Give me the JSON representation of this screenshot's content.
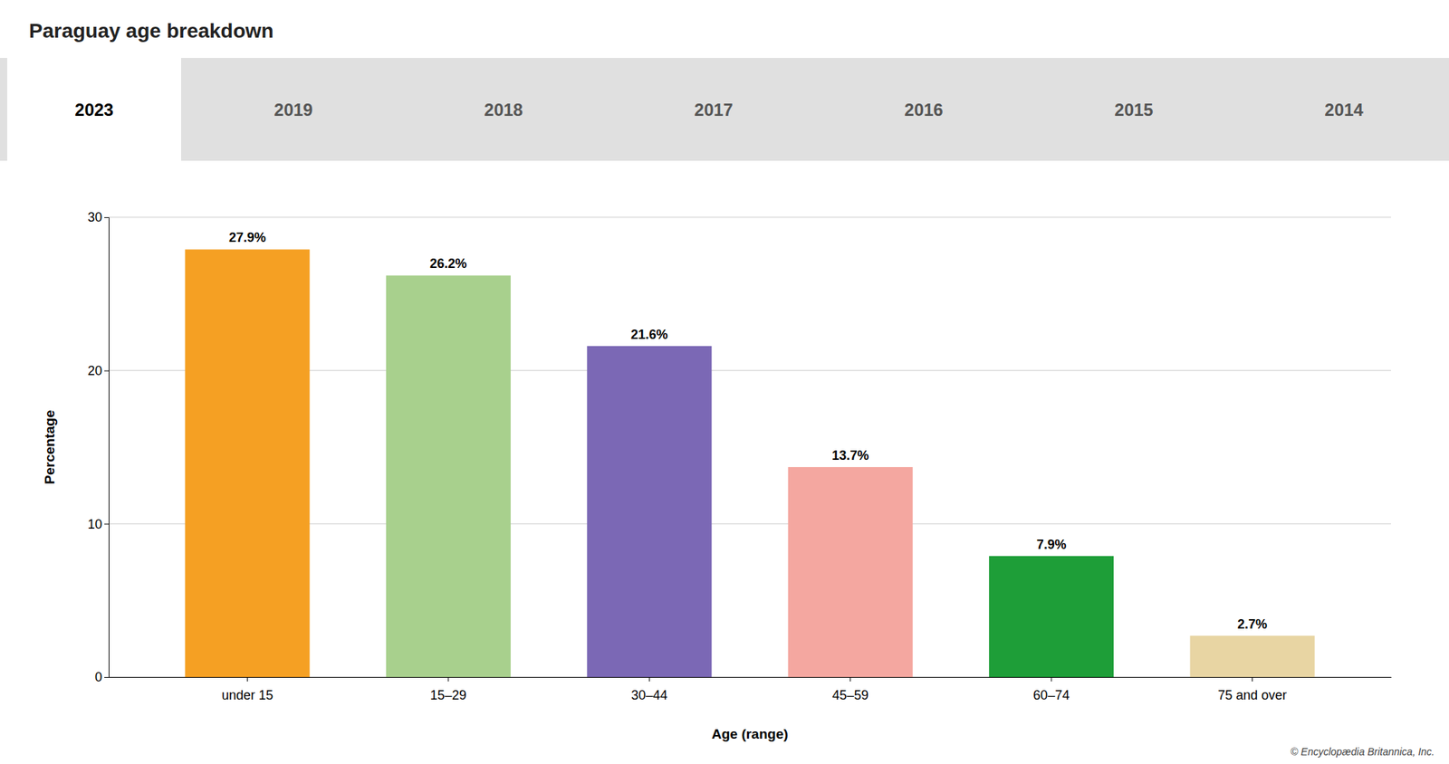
{
  "chart_data": {
    "type": "bar",
    "title": "Paraguay age breakdown",
    "categories": [
      "under 15",
      "15–29",
      "30–44",
      "45–59",
      "60–74",
      "75 and over"
    ],
    "values": [
      27.9,
      26.2,
      21.6,
      13.7,
      7.9,
      2.7
    ],
    "value_labels": [
      "27.9%",
      "26.2%",
      "21.6%",
      "13.7%",
      "7.9%",
      "2.7%"
    ],
    "data_labels": true,
    "colors": [
      "#f5a023",
      "#a8d08d",
      "#7b68b5",
      "#f4a7a0",
      "#1e9e38",
      "#e8d5a3"
    ],
    "xlabel": "Age (range)",
    "ylabel": "Percentage",
    "ylim": [
      0,
      30
    ],
    "yticks": [
      0,
      10,
      20,
      30
    ],
    "grid": true,
    "tabs": [
      "2023",
      "2019",
      "2018",
      "2017",
      "2016",
      "2015",
      "2014"
    ],
    "annotations": [
      "© Encyclopædia Britannica, Inc."
    ]
  }
}
